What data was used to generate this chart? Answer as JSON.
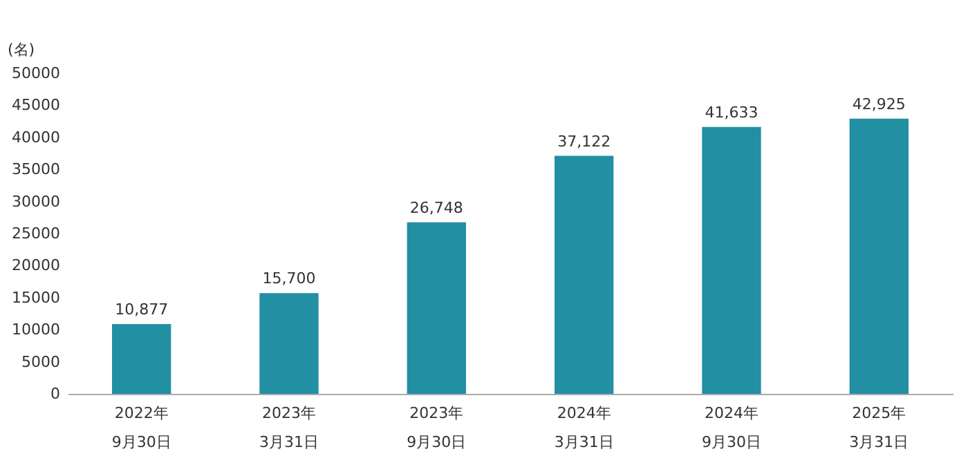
{
  "chart_data": {
    "type": "bar",
    "ylabel": "(名)",
    "categories": [
      "2022年\n9月30日",
      "2023年\n3月31日",
      "2023年\n9月30日",
      "2024年\n3月31日",
      "2024年\n9月30日",
      "2025年\n3月31日"
    ],
    "values": [
      10877,
      15700,
      26748,
      37122,
      41633,
      42925
    ],
    "color": "#228fa3",
    "ylim": [
      0,
      50000
    ],
    "yticks": [
      0,
      5000,
      10000,
      15000,
      20000,
      25000,
      30000,
      35000,
      40000,
      45000,
      50000
    ],
    "value_labels": [
      "10,877",
      "15,700",
      "26,748",
      "37,122",
      "41,633",
      "42,925"
    ],
    "grid": false
  }
}
